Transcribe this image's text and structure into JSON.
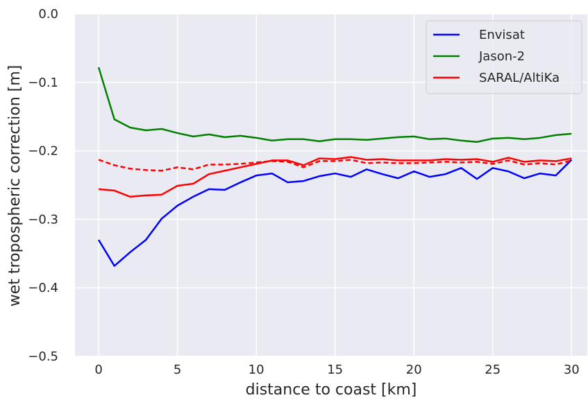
{
  "chart_data": {
    "type": "line",
    "title": "",
    "xlabel": "distance to coast [km]",
    "ylabel": "wet tropospheric correction [m]",
    "xlim": [
      -1.5,
      31
    ],
    "ylim": [
      -0.5,
      0.0
    ],
    "xticks": [
      0,
      5,
      10,
      15,
      20,
      25,
      30
    ],
    "yticks": [
      -0.5,
      -0.4,
      -0.3,
      -0.2,
      -0.1,
      0.0
    ],
    "xtick_labels": [
      "0",
      "5",
      "10",
      "15",
      "20",
      "25",
      "30"
    ],
    "ytick_labels": [
      "−0.5",
      "−0.4",
      "−0.3",
      "−0.2",
      "−0.1",
      "0.0"
    ],
    "grid": true,
    "legend_position": "top-right",
    "x": [
      0,
      1,
      2,
      3,
      4,
      5,
      6,
      7,
      8,
      9,
      10,
      11,
      12,
      13,
      14,
      15,
      16,
      17,
      18,
      19,
      20,
      21,
      22,
      23,
      24,
      25,
      26,
      27,
      28,
      29,
      30
    ],
    "series": [
      {
        "name": "Envisat",
        "color": "#0000ff",
        "dash": "solid",
        "values": [
          -0.33,
          -0.368,
          -0.348,
          -0.33,
          -0.299,
          -0.28,
          -0.267,
          -0.256,
          -0.257,
          -0.246,
          -0.236,
          -0.233,
          -0.246,
          -0.244,
          -0.237,
          -0.233,
          -0.238,
          -0.227,
          -0.234,
          -0.24,
          -0.23,
          -0.238,
          -0.234,
          -0.225,
          -0.241,
          -0.225,
          -0.23,
          -0.24,
          -0.233,
          -0.236,
          -0.213
        ]
      },
      {
        "name": "Jason-2",
        "color": "#008000",
        "dash": "solid",
        "values": [
          -0.078,
          -0.154,
          -0.166,
          -0.17,
          -0.168,
          -0.174,
          -0.179,
          -0.176,
          -0.18,
          -0.178,
          -0.181,
          -0.185,
          -0.183,
          -0.183,
          -0.186,
          -0.183,
          -0.183,
          -0.184,
          -0.182,
          -0.18,
          -0.179,
          -0.183,
          -0.182,
          -0.185,
          -0.187,
          -0.182,
          -0.181,
          -0.183,
          -0.181,
          -0.177,
          -0.175
        ]
      },
      {
        "name": "SARAL/AltiKa",
        "color": "#ff0000",
        "dash": "solid",
        "values": [
          -0.256,
          -0.258,
          -0.267,
          -0.265,
          -0.264,
          -0.251,
          -0.248,
          -0.234,
          -0.229,
          -0.224,
          -0.219,
          -0.214,
          -0.214,
          -0.221,
          -0.211,
          -0.212,
          -0.209,
          -0.213,
          -0.212,
          -0.214,
          -0.214,
          -0.214,
          -0.212,
          -0.213,
          -0.212,
          -0.216,
          -0.21,
          -0.216,
          -0.214,
          -0.215,
          -0.211
        ]
      },
      {
        "color": "#ff0000",
        "dash": "dashed",
        "values": [
          -0.213,
          -0.221,
          -0.226,
          -0.228,
          -0.229,
          -0.224,
          -0.227,
          -0.22,
          -0.22,
          -0.219,
          -0.217,
          -0.215,
          -0.216,
          -0.224,
          -0.215,
          -0.215,
          -0.213,
          -0.218,
          -0.217,
          -0.218,
          -0.218,
          -0.217,
          -0.216,
          -0.217,
          -0.216,
          -0.219,
          -0.214,
          -0.22,
          -0.218,
          -0.22,
          -0.214
        ]
      }
    ]
  }
}
